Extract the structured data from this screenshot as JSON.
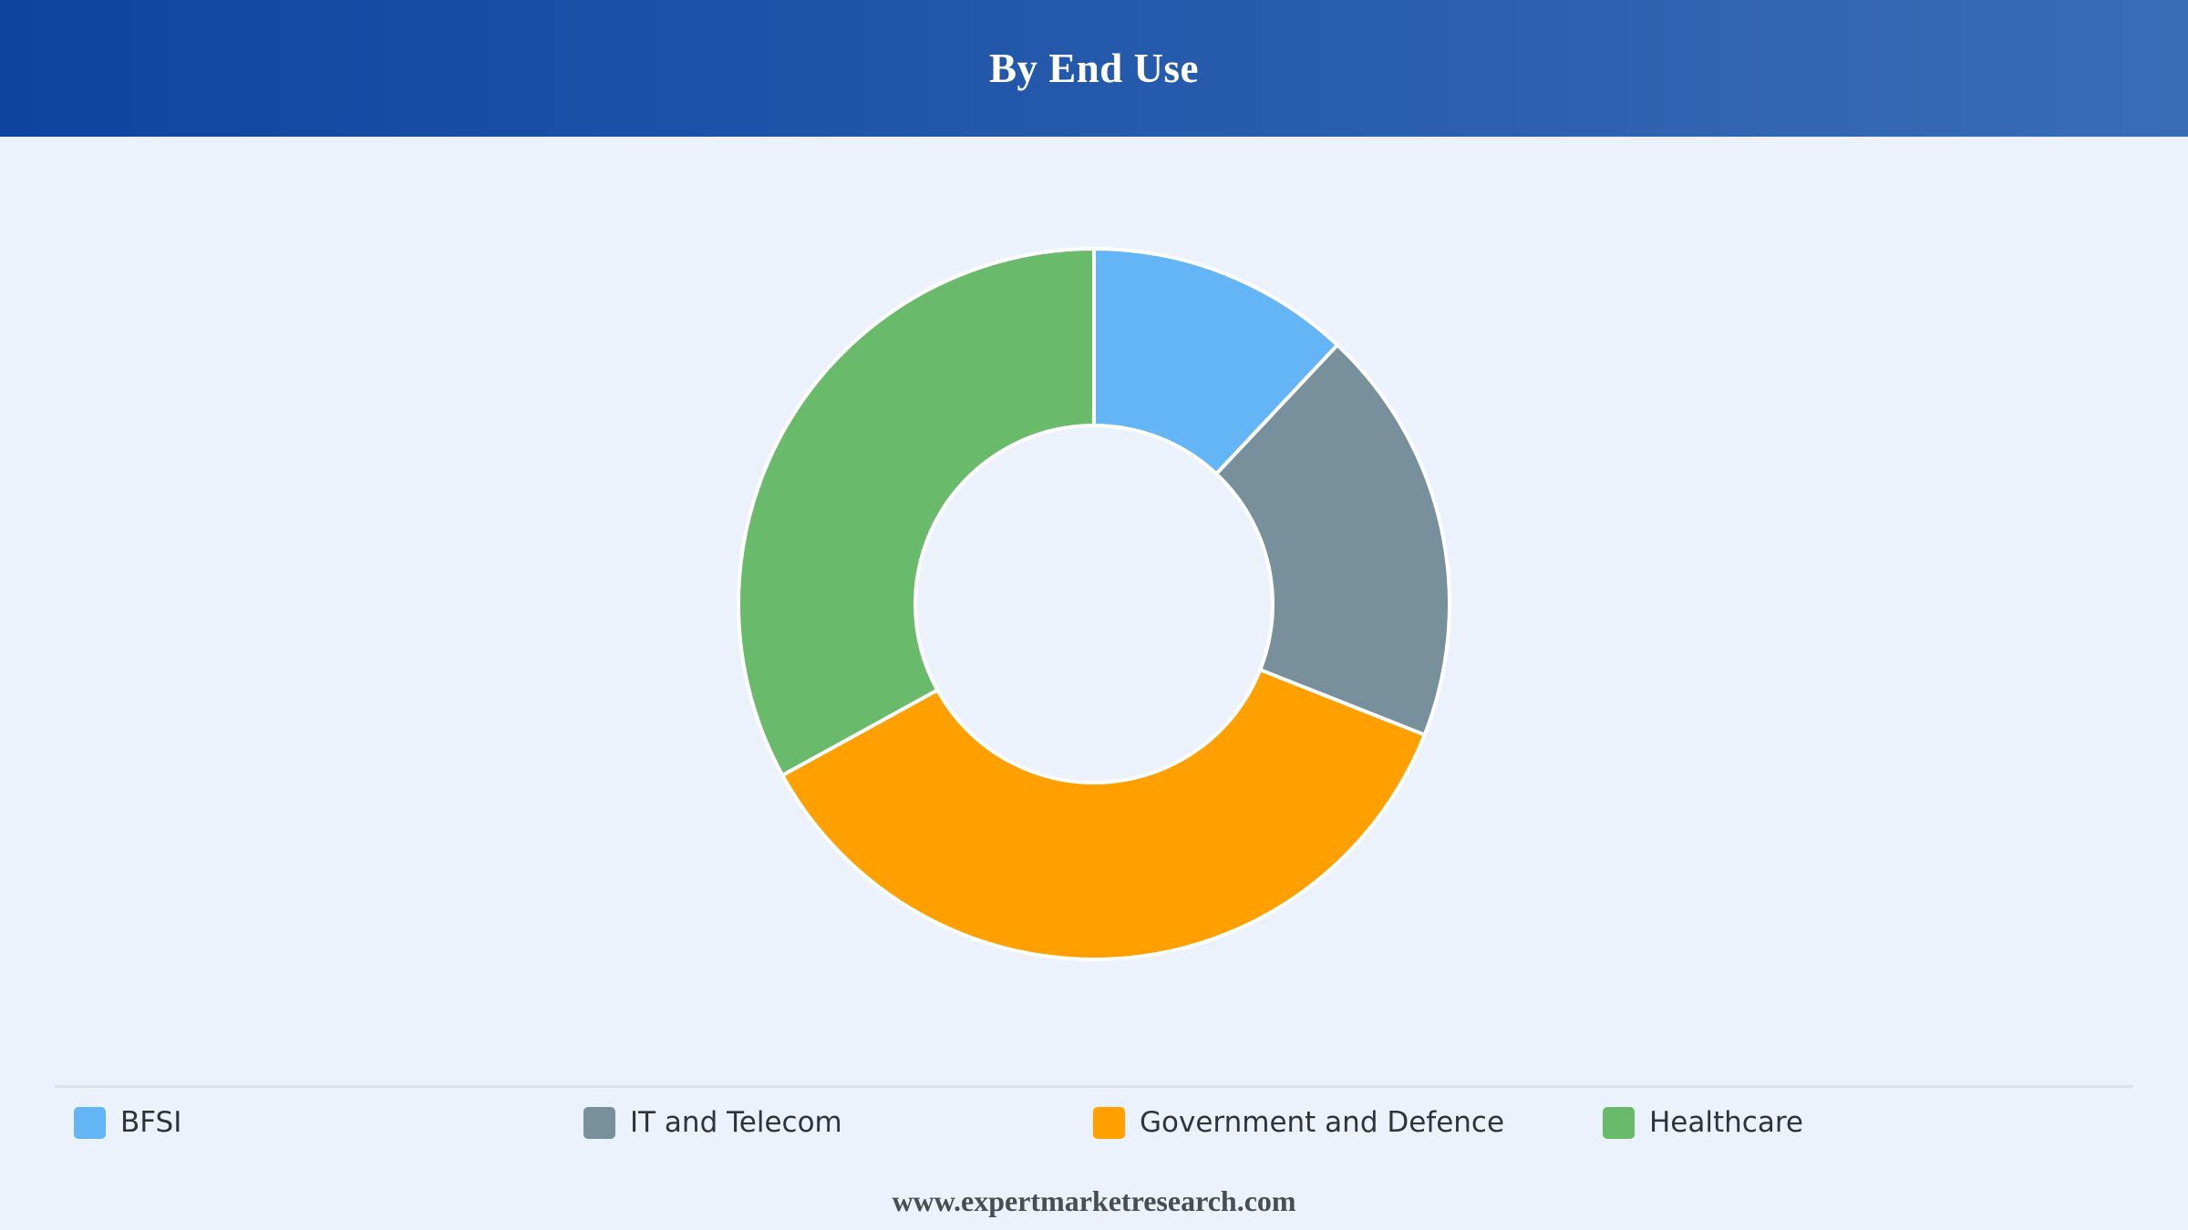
{
  "title": "By End Use",
  "footer": "www.expertmarketresearch.com",
  "chart_data": {
    "type": "pie",
    "donut": true,
    "categories": [
      "BFSI",
      "IT and Telecom",
      "Government and Defence",
      "Healthcare"
    ],
    "values": [
      12,
      19,
      36,
      33
    ],
    "colors": [
      "#64b5f6",
      "#78909c",
      "#ffa000",
      "#6aba6b"
    ],
    "legend_position": "bottom"
  }
}
